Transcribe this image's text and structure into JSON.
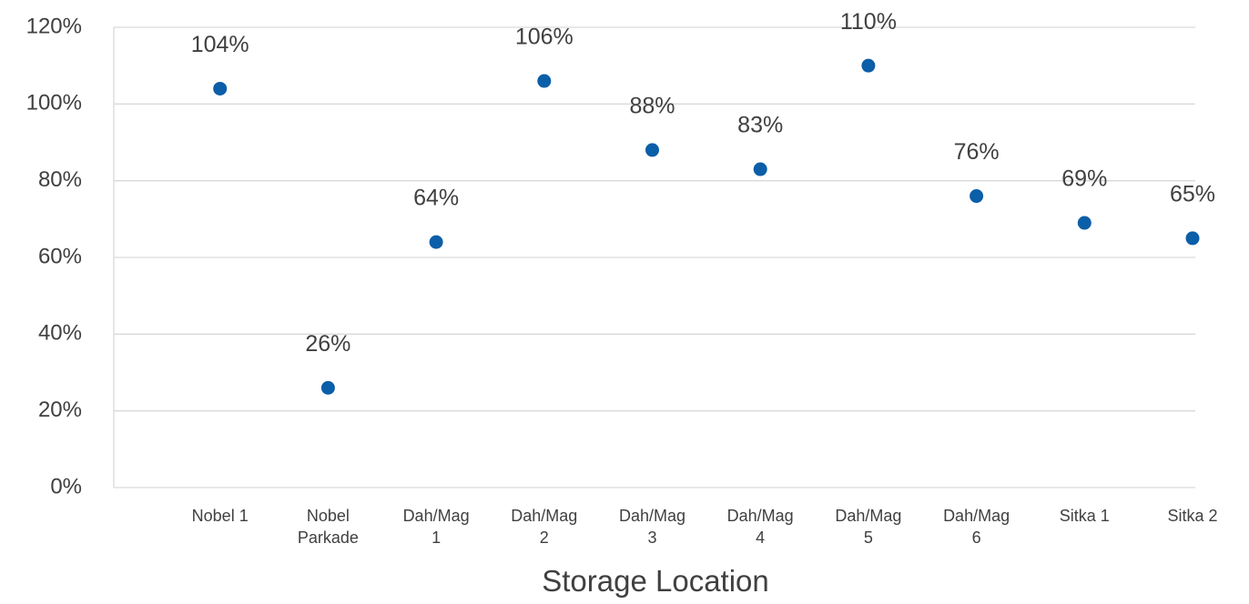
{
  "chart_data": {
    "type": "scatter",
    "x_label": "Storage Location",
    "categories": [
      "Nobel 1",
      "Nobel Parkade",
      "Dah/Mag 1",
      "Dah/Mag 2",
      "Dah/Mag 3",
      "Dah/Mag 4",
      "Dah/Mag 5",
      "Dah/Mag 6",
      "Sitka 1",
      "Sitka 2"
    ],
    "values": [
      104,
      26,
      64,
      106,
      88,
      83,
      110,
      76,
      69,
      65
    ],
    "value_labels": [
      "104%",
      "26%",
      "64%",
      "106%",
      "88%",
      "83%",
      "110%",
      "76%",
      "69%",
      "65%"
    ],
    "color": "#0b5ea8",
    "ylim": [
      0,
      120
    ],
    "yticks": [
      {
        "value": 0,
        "label": "0%"
      },
      {
        "value": 20,
        "label": "20%"
      },
      {
        "value": 40,
        "label": "40%"
      },
      {
        "value": 60,
        "label": "60%"
      },
      {
        "value": 80,
        "label": "80%"
      },
      {
        "value": 100,
        "label": "100%"
      },
      {
        "value": 120,
        "label": "120%"
      }
    ],
    "grid": true
  }
}
